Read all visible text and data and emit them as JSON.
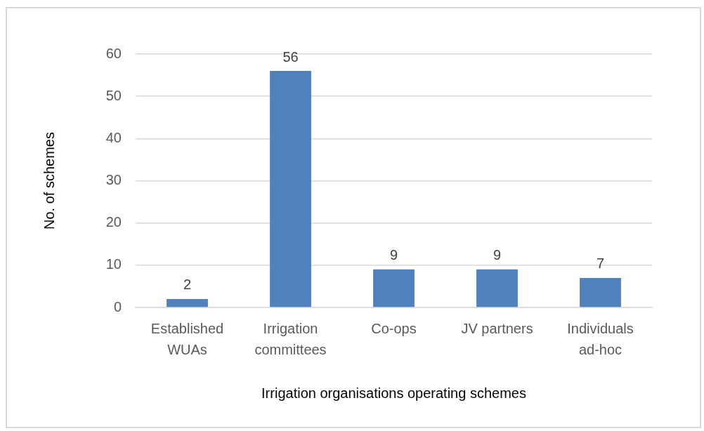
{
  "chart_data": {
    "type": "bar",
    "categories": [
      "Established WUAs",
      "Irrigation committees",
      "Co-ops",
      "JV partners",
      "Individuals ad-hoc"
    ],
    "values": [
      2,
      56,
      9,
      9,
      7
    ],
    "color": "#4f81bd",
    "xlabel": "Irrigation organisations operating schemes",
    "ylabel": "No. of schemes",
    "ylim": [
      0,
      60
    ],
    "yticks": [
      0,
      10,
      20,
      30,
      40,
      50,
      60
    ],
    "grid": "y",
    "data_labels": true
  }
}
